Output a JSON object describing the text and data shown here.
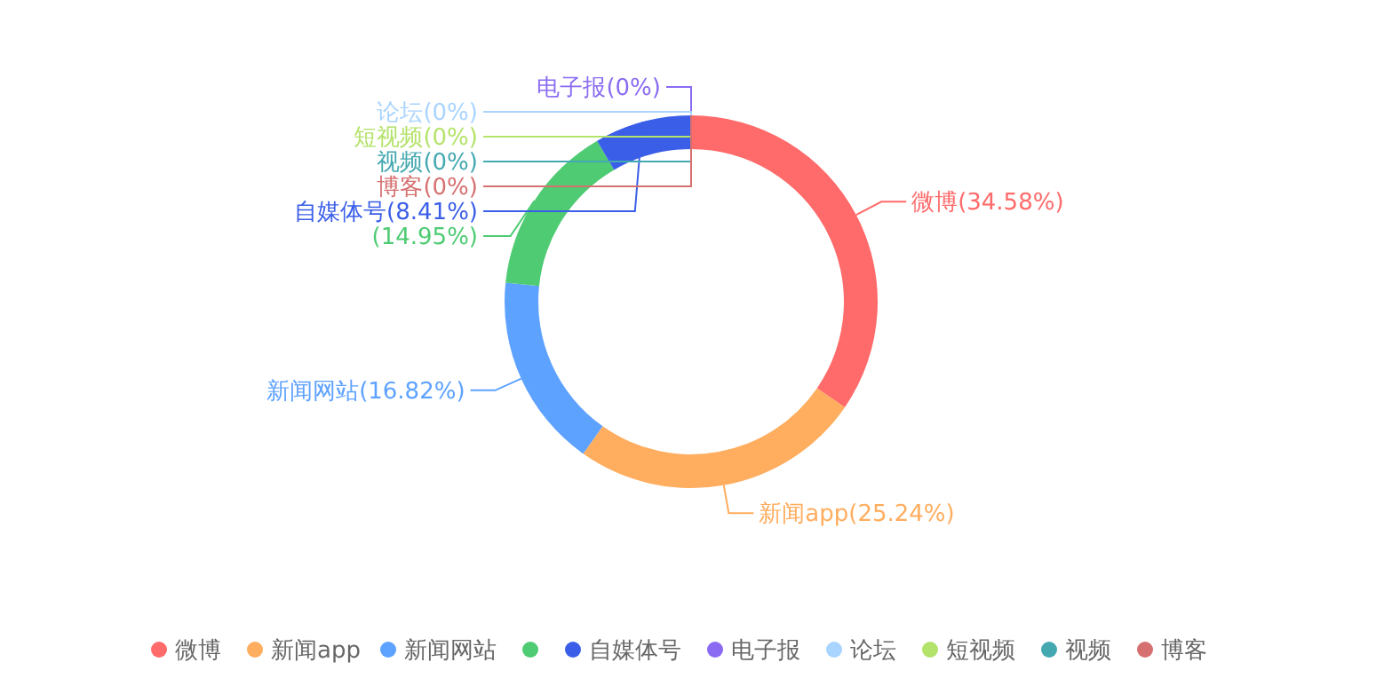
{
  "chart_data": {
    "type": "donut",
    "categories": [
      "微博",
      "新闻app",
      "新闻网站",
      null,
      "自媒体号",
      "电子报",
      "论坛",
      "短视频",
      "视频",
      "博客"
    ],
    "values": [
      34.58,
      25.24,
      16.82,
      14.95,
      8.41,
      0,
      0,
      0,
      0,
      0
    ],
    "value_labels": [
      "微博(34.58%)",
      "新闻app(25.24%)",
      "新闻网站(16.82%)",
      "(14.95%)",
      "自媒体号(8.41%)",
      "电子报(0%)",
      "论坛(0%)",
      "短视频(0%)",
      "视频(0%)",
      "博客(0%)"
    ],
    "colors": [
      "#ff6a6a",
      "#ffad5e",
      "#5ea2ff",
      "#4ecb73",
      "#3b5ee8",
      "#8a6bf2",
      "#a9d4ff",
      "#b4e36b",
      "#44a8b0",
      "#d67070"
    ],
    "legend": "bottom"
  }
}
